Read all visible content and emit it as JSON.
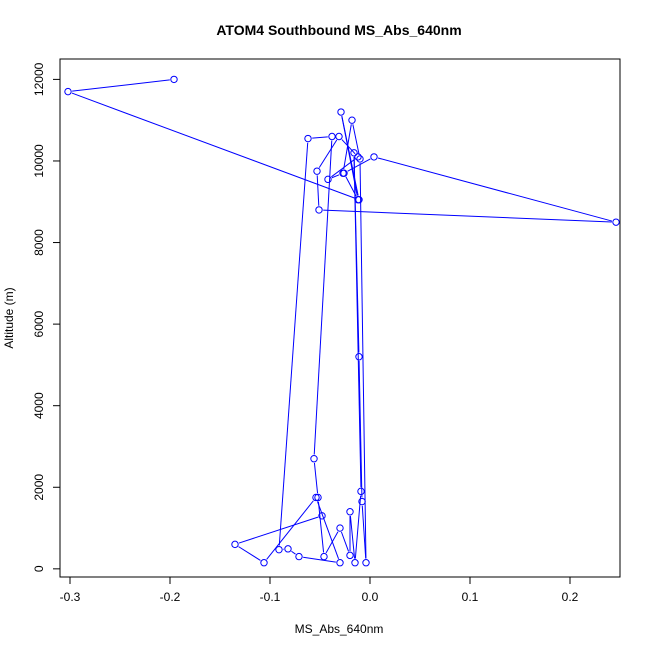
{
  "chart_data": {
    "type": "line",
    "title": "ATOM4 Southbound MS_Abs_640nm",
    "xlabel": "MS_Abs_640nm",
    "ylabel": "Altitude (m)",
    "xlim": [
      -0.31,
      0.25
    ],
    "ylim": [
      -200,
      12500
    ],
    "xticks": [
      -0.3,
      -0.2,
      -0.1,
      0.0,
      0.1,
      0.2
    ],
    "xtick_labels": [
      "-0.3",
      "-0.2",
      "-0.1",
      "0.0",
      "0.1",
      "0.2"
    ],
    "yticks": [
      0,
      2000,
      4000,
      6000,
      8000,
      10000,
      12000
    ],
    "ytick_labels": [
      "0",
      "2000",
      "4000",
      "6000",
      "8000",
      "10000",
      "12000"
    ],
    "grid": false,
    "legend": "none",
    "series": [
      {
        "color": "#0000ff",
        "marker": "open-circle",
        "x": [
          -0.196,
          -0.302,
          -0.011,
          -0.029,
          -0.012,
          -0.026,
          0.004,
          0.246,
          -0.051,
          -0.053,
          -0.031,
          -0.012,
          -0.042,
          -0.027,
          -0.018,
          -0.01,
          -0.004,
          -0.008,
          -0.011,
          -0.016,
          -0.009,
          -0.015,
          -0.02,
          -0.02,
          -0.03,
          -0.046,
          -0.052,
          -0.056,
          -0.038,
          -0.062,
          -0.091,
          -0.082,
          -0.071,
          -0.03,
          -0.054,
          -0.106,
          -0.135,
          -0.048
        ],
        "y": [
          12000,
          11700,
          9050,
          11200,
          9050,
          9700,
          10100,
          8500,
          8800,
          9750,
          10600,
          10100,
          9550,
          9700,
          11000,
          10050,
          150,
          1650,
          5200,
          10200,
          1900,
          150,
          1400,
          330,
          1000,
          300,
          1750,
          2700,
          10600,
          10550,
          470,
          490,
          300,
          150,
          1750,
          150,
          600,
          1300
        ]
      }
    ]
  }
}
